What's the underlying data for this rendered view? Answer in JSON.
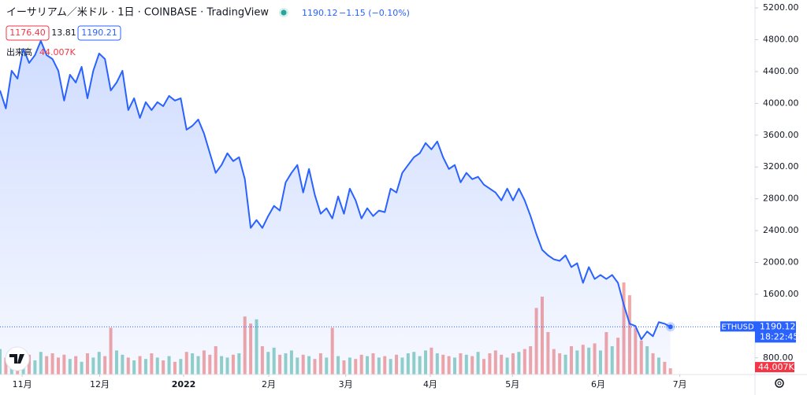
{
  "chart_data": {
    "type": "area",
    "title": "イーサリアム／米ドル · 1日 · COINBASE · TradingView",
    "change_label": "−1.15 (−0.10%)",
    "ohlc_labels": [
      "1176.40",
      "13.81",
      "1190.21"
    ],
    "countdown": "18:22:45",
    "series": [
      {
        "name": "ETHUSD",
        "color": "#2962ff",
        "values": [
          4163,
          3936,
          4410,
          4311,
          4686,
          4509,
          4607,
          4785,
          4607,
          4558,
          4410,
          4035,
          4360,
          4262,
          4459,
          4064,
          4410,
          4627,
          4558,
          4163,
          4262,
          4410,
          3916,
          4064,
          3817,
          4015,
          3916,
          4015,
          3965,
          4094,
          4035,
          4064,
          3669,
          3718,
          3797,
          3620,
          3373,
          3126,
          3225,
          3373,
          3274,
          3323,
          3047,
          2434,
          2533,
          2434,
          2583,
          2711,
          2652,
          3007,
          3126,
          3225,
          2879,
          3175,
          2849,
          2612,
          2681,
          2553,
          2830,
          2612,
          2928,
          2780,
          2553,
          2681,
          2583,
          2652,
          2632,
          2928,
          2879,
          3126,
          3225,
          3323,
          3373,
          3501,
          3422,
          3521,
          3323,
          3175,
          3225,
          3007,
          3126,
          3047,
          3077,
          2978,
          2928,
          2879,
          2780,
          2928,
          2780,
          2928,
          2780,
          2583,
          2356,
          2158,
          2089,
          2039,
          2020,
          2089,
          1941,
          1990,
          1743,
          1941,
          1792,
          1842,
          1792,
          1842,
          1743,
          1467,
          1229,
          1200,
          1032,
          1131,
          1072,
          1249,
          1229,
          1190.12
        ]
      },
      {
        "name": "出来高",
        "up_color": "#93d2c8",
        "down_color": "#f4a7a5",
        "last_value_label": "44.007K",
        "values": [
          180,
          120,
          150,
          90,
          110,
          140,
          100,
          160,
          130,
          150,
          120,
          140,
          110,
          130,
          90,
          150,
          120,
          160,
          130,
          330,
          170,
          140,
          120,
          100,
          130,
          110,
          150,
          120,
          100,
          130,
          90,
          110,
          160,
          150,
          130,
          170,
          140,
          200,
          130,
          120,
          140,
          150,
          410,
          360,
          390,
          200,
          160,
          190,
          140,
          150,
          170,
          120,
          140,
          130,
          110,
          150,
          120,
          330,
          130,
          100,
          120,
          110,
          140,
          130,
          150,
          120,
          130,
          110,
          140,
          120,
          150,
          160,
          130,
          170,
          190,
          150,
          140,
          130,
          120,
          150,
          140,
          130,
          160,
          110,
          150,
          170,
          140,
          120,
          150,
          160,
          180,
          200,
          470,
          550,
          300,
          180,
          150,
          140,
          200,
          170,
          210,
          190,
          220,
          170,
          300,
          200,
          260,
          650,
          560,
          330,
          240,
          200,
          150,
          120,
          90,
          44.007
        ]
      }
    ],
    "xlim": [
      0,
      129.5
    ],
    "xticks": [
      {
        "value": 3.8,
        "label": "11月"
      },
      {
        "value": 17.1,
        "label": "12月"
      },
      {
        "value": 31.5,
        "label": "2022"
      },
      {
        "value": 46.1,
        "label": "2月"
      },
      {
        "value": 59.3,
        "label": "3月"
      },
      {
        "value": 73.8,
        "label": "4月"
      },
      {
        "value": 87.9,
        "label": "5月"
      },
      {
        "value": 102.6,
        "label": "6月"
      },
      {
        "value": 116.6,
        "label": "7月"
      }
    ],
    "ylim": [
      590,
      5300
    ],
    "yticks": [
      {
        "value": 5200,
        "label": "5200.00"
      },
      {
        "value": 4800,
        "label": "4800.00"
      },
      {
        "value": 4400,
        "label": "4400.00"
      },
      {
        "value": 4000,
        "label": "4000.00"
      },
      {
        "value": 3600,
        "label": "3600.00"
      },
      {
        "value": 3200,
        "label": "3200.00"
      },
      {
        "value": 2800,
        "label": "2800.00"
      },
      {
        "value": 2400,
        "label": "2400.00"
      },
      {
        "value": 2000,
        "label": "2000.00"
      },
      {
        "value": 1600,
        "label": "1600.00"
      },
      {
        "value": 800,
        "label": "800.00"
      }
    ],
    "grid": false
  }
}
